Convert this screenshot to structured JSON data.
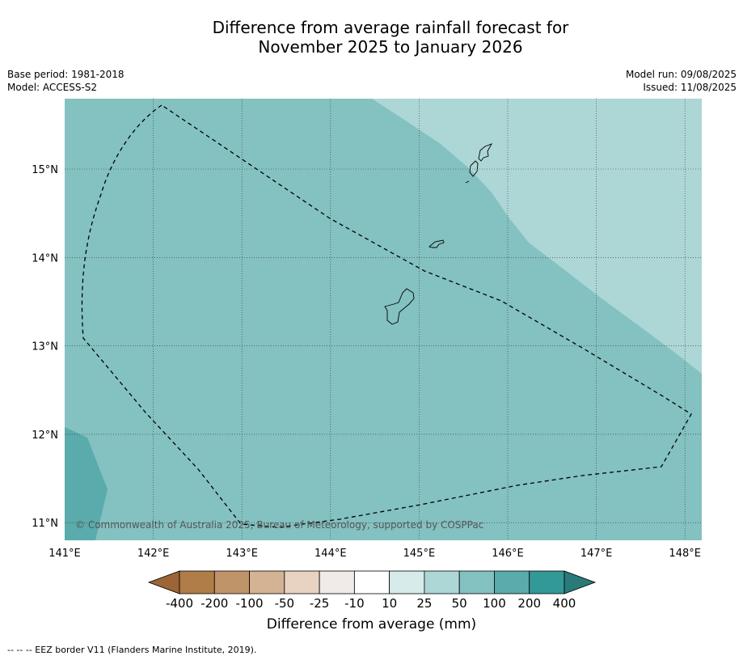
{
  "title_line1": "Difference from average rainfall forecast for",
  "title_line2": "November 2025 to January 2026",
  "base_period": "Base period: 1981-2018",
  "model": "Model: ACCESS-S2",
  "model_run": "Model run: 09/08/2025",
  "issued": "Issued: 11/08/2025",
  "copyright": "© Commonwealth of Australia 2025, Bureau of Meteorology, supported by COSPPac",
  "lon_labels": [
    "141°E",
    "142°E",
    "143°E",
    "144°E",
    "145°E",
    "146°E",
    "147°E",
    "148°E"
  ],
  "lat_labels": [
    "15°N",
    "14°N",
    "13°N",
    "12°N",
    "11°N"
  ],
  "colorbar": {
    "title": "Difference from average (mm)",
    "labels": [
      "-400",
      "-200",
      "-100",
      "-50",
      "-25",
      "-10",
      "10",
      "25",
      "50",
      "100",
      "200",
      "400"
    ],
    "colors": [
      "#9c6536",
      "#b07c47",
      "#c09469",
      "#d4b294",
      "#e8d2c2",
      "#f0ebe8",
      "#ffffff",
      "#d6ebea",
      "#add6d6",
      "#84c1c1",
      "#5aabab",
      "#339898",
      "#2a7a7a"
    ]
  },
  "footnote": "--  --  -- EEZ border V11 (Flanders Marine Institute, 2019)."
}
